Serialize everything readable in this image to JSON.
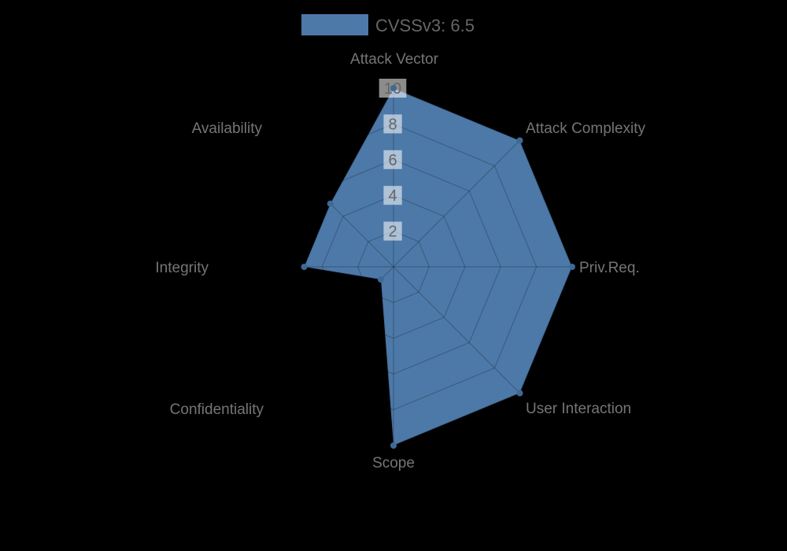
{
  "legend": {
    "label": "CVSSv3: 6.5"
  },
  "colors": {
    "background": "#000000",
    "series_fill": "rgba(96,151,210,0.8)",
    "series_fill_composited": "#4d79a8",
    "series_border": "rgba(0,0,0,0.12)",
    "point": "#3f6995",
    "grid": "rgba(0,0,0,0.22)",
    "tick_backdrop": "rgba(255,255,255,0.55)",
    "tick_text": "#666666",
    "axis_label_text": "#757575",
    "legend_text": "#666666"
  },
  "chart_data": {
    "type": "radar",
    "title": "CVSSv3: 6.5",
    "legend_position": "top",
    "grid": true,
    "start_angle_deg": 0,
    "direction": "clockwise",
    "categories": [
      "Attack Vector",
      "Attack Complexity",
      "Priv.Req.",
      "User Interaction",
      "Scope",
      "Confidentiality",
      "Integrity",
      "Availability"
    ],
    "series": [
      {
        "name": "CVSSv3: 6.5",
        "values": [
          10,
          10,
          10,
          10,
          10,
          1,
          5,
          5
        ]
      }
    ],
    "rmin": 0,
    "rmax": 10,
    "ticks": [
      2,
      4,
      6,
      8,
      10
    ]
  }
}
